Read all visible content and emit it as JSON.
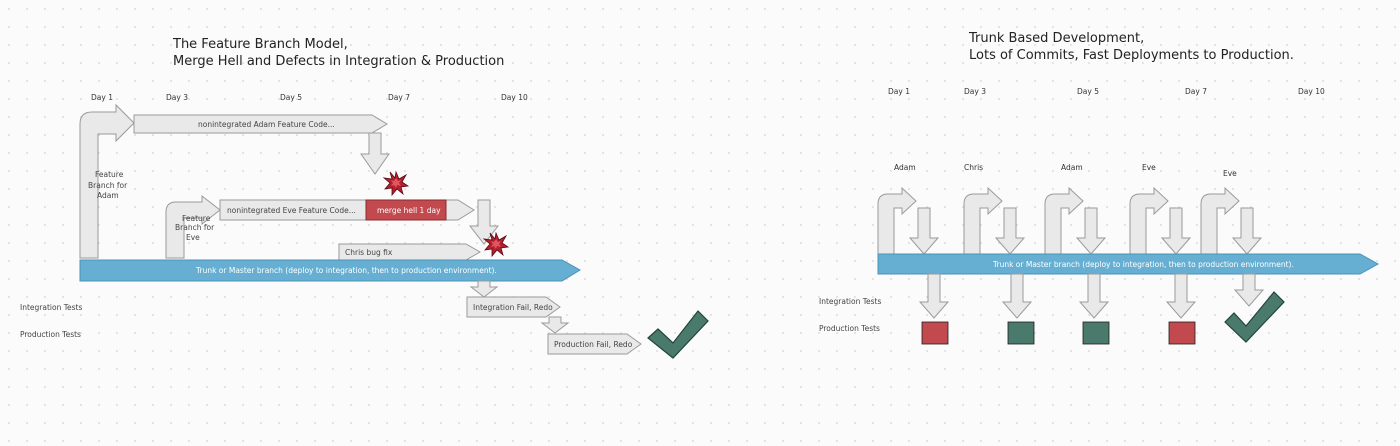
{
  "left": {
    "title_line1": "The Feature Branch Model,",
    "title_line2": "Merge Hell and Defects in Integration & Production",
    "days": [
      "Day 1",
      "Day 3",
      "Day 5",
      "Day 7",
      "Day 10"
    ],
    "adam_branch_label": [
      "Feature",
      "Branch for",
      "Adam"
    ],
    "eve_branch_label": [
      "Feature",
      "Branch for",
      "Eve"
    ],
    "adam_feature_code": "nonintegrated Adam Feature Code...",
    "eve_feature_code": "nonintegrated Eve Feature Code...",
    "merge_hell": "merge hell 1 day",
    "chris_bug_fix": "Chris bug fix",
    "trunk": "Trunk or Master branch (deploy to integration, then to production environment).",
    "integration_tests": "Integration Tests",
    "production_tests": "Production Tests",
    "integration_fail": "Integration Fail, Redo",
    "production_fail": "Production Fail, Redo"
  },
  "right": {
    "title_line1": "Trunk Based Development,",
    "title_line2": "Lots of Commits, Fast Deployments to Production.",
    "days": [
      "Day 1",
      "Day 3",
      "Day 5",
      "Day 7",
      "Day 10"
    ],
    "committers": [
      "Adam",
      "Chris",
      "Adam",
      "Eve",
      "Eve"
    ],
    "trunk": "Trunk or Master branch (deploy to integration, then to production environment).",
    "integration_tests": "Integration Tests",
    "production_tests": "Production Tests",
    "production_results": [
      "fail",
      "pass",
      "pass",
      "fail"
    ]
  },
  "colors": {
    "trunk": "#66afd2",
    "merge_hell": "#c24a4f",
    "fail": "#c24a4f",
    "pass": "#4a7a6c",
    "explosion": "#b3202e"
  }
}
